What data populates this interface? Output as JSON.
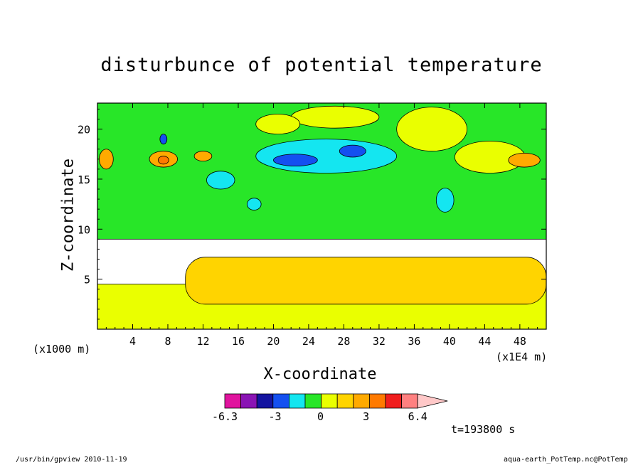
{
  "chart_data": {
    "type": "heatmap",
    "title": "disturbunce of potential temperature",
    "xlabel": "X-coordinate",
    "ylabel": "Z-coordinate",
    "x_unit_label": "(x1E4 m)",
    "z_unit_label": "(x1000 m)",
    "x_ticks": [
      4,
      8,
      12,
      16,
      20,
      24,
      28,
      32,
      36,
      40,
      44,
      48
    ],
    "y_ticks": [
      5,
      10,
      15,
      20
    ],
    "xlim": [
      0,
      51
    ],
    "ylim": [
      0,
      22.6
    ],
    "colorbar": {
      "labels": [
        "-6.3",
        "-3",
        "0",
        "3",
        "6.4"
      ],
      "label_values": [
        -6.3,
        -3,
        0,
        3,
        6.4
      ],
      "colors": [
        "#e0149e",
        "#8a14b4",
        "#1414a0",
        "#1450f0",
        "#14e6f0",
        "#28e628",
        "#eaff00",
        "#ffd400",
        "#ffaa00",
        "#ff7a00",
        "#f01e1e",
        "#ff8080",
        "#ffc8c8"
      ],
      "levels_min": -6.3,
      "levels_max": 6.4
    },
    "bands": [
      {
        "z0": 0.0,
        "z1": 4.5,
        "level": "yellow",
        "color": "#eaff00"
      },
      {
        "z0": 2.5,
        "z1": 7.2,
        "level": "orange",
        "color": "#ffd400",
        "x0": 10,
        "x1": 51
      },
      {
        "z0": 9.0,
        "z1": 22.6,
        "level": "green",
        "color": "#28e628"
      }
    ],
    "features": [
      {
        "name": "blue-blob-1",
        "x": 22.5,
        "z": 16.9,
        "rx": 2.5,
        "rz": 0.6,
        "value": -3.5,
        "color": "#1450f0"
      },
      {
        "name": "blue-blob-2",
        "x": 29.0,
        "z": 17.8,
        "rx": 1.5,
        "rz": 0.6,
        "value": -3.5,
        "color": "#1450f0"
      },
      {
        "name": "blue-blob-3",
        "x": 7.5,
        "z": 19.0,
        "rx": 0.4,
        "rz": 0.5,
        "value": -3.5,
        "color": "#1450f0"
      },
      {
        "name": "cyan-region-1",
        "x": 26.0,
        "z": 17.3,
        "rx": 8.0,
        "rz": 1.7,
        "value": -2.0,
        "color": "#14e6f0"
      },
      {
        "name": "cyan-blob-2",
        "x": 14.0,
        "z": 14.9,
        "rx": 1.6,
        "rz": 0.9,
        "value": -2.0,
        "color": "#14e6f0"
      },
      {
        "name": "cyan-blob-3",
        "x": 39.5,
        "z": 12.9,
        "rx": 1.0,
        "rz": 1.2,
        "value": -2.0,
        "color": "#14e6f0"
      },
      {
        "name": "cyan-blob-4",
        "x": 17.8,
        "z": 12.5,
        "rx": 0.8,
        "rz": 0.6,
        "value": -2.0,
        "color": "#14e6f0"
      },
      {
        "name": "yellow-blob-1",
        "x": 44.6,
        "z": 17.2,
        "rx": 4.0,
        "rz": 1.6,
        "value": 1.0,
        "color": "#eaff00"
      },
      {
        "name": "yellow-blob-2",
        "x": 27.0,
        "z": 21.2,
        "rx": 5.0,
        "rz": 1.1,
        "value": 1.0,
        "color": "#eaff00"
      },
      {
        "name": "yellow-blob-3",
        "x": 38.0,
        "z": 20.0,
        "rx": 4.0,
        "rz": 2.2,
        "value": 1.0,
        "color": "#eaff00"
      },
      {
        "name": "yellow-blob-4",
        "x": 20.5,
        "z": 20.5,
        "rx": 2.5,
        "rz": 1.0,
        "value": 1.0,
        "color": "#eaff00"
      },
      {
        "name": "orange-blob-1",
        "x": 7.5,
        "z": 17.0,
        "rx": 1.6,
        "rz": 0.8,
        "value": 2.5,
        "color": "#ffaa00"
      },
      {
        "name": "orange-blob-2",
        "x": 48.5,
        "z": 16.9,
        "rx": 1.8,
        "rz": 0.7,
        "value": 2.5,
        "color": "#ffaa00"
      },
      {
        "name": "orange-blob-3",
        "x": 1.0,
        "z": 17.0,
        "rx": 0.8,
        "rz": 1.0,
        "value": 2.5,
        "color": "#ffaa00"
      },
      {
        "name": "orange-blob-4",
        "x": 12.0,
        "z": 17.3,
        "rx": 1.0,
        "rz": 0.5,
        "value": 2.5,
        "color": "#ffaa00"
      },
      {
        "name": "red-blob-1",
        "x": 7.5,
        "z": 16.9,
        "rx": 0.6,
        "rz": 0.4,
        "value": 3.5,
        "color": "#ff7a00"
      }
    ],
    "time_label": "t=193800 s"
  },
  "footer": {
    "left": "/usr/bin/gpview   2010-11-19",
    "right": "aqua-earth_PotTemp.nc@PotTemp"
  }
}
